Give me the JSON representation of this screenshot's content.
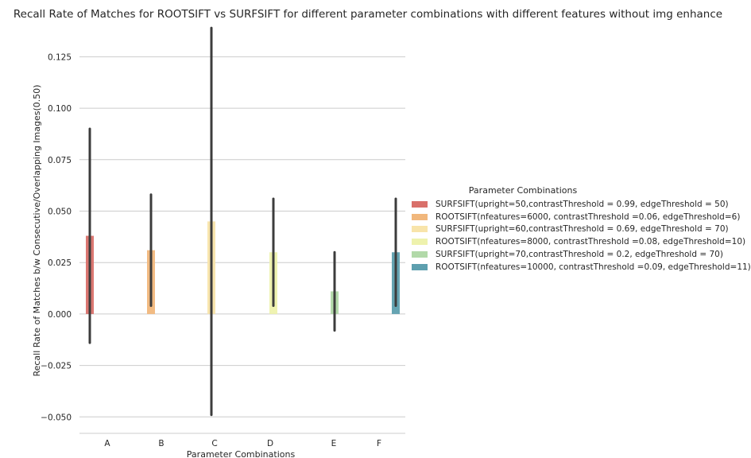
{
  "chart_data": {
    "type": "bar",
    "title": "Recall Rate of Matches for ROOTSIFT vs SURFSIFT for different parameter combinations with different features without img enhance",
    "xlabel": "Parameter Combinations",
    "ylabel": "Recall Rate of Matches b/w Consecutive/Overlapping Images(0.50)",
    "categories": [
      "A",
      "B",
      "C",
      "D",
      "E",
      "F"
    ],
    "ylim": [
      -0.058,
      0.141
    ],
    "yticks": [
      -0.05,
      -0.025,
      0.0,
      0.025,
      0.05,
      0.075,
      0.1,
      0.125
    ],
    "ytick_labels": [
      "−0.050",
      "−0.025",
      "0.000",
      "0.025",
      "0.050",
      "0.075",
      "0.100",
      "0.125"
    ],
    "grid": "horizontal",
    "legend_title": "Parameter Combinations",
    "legend_position": "right",
    "series": [
      {
        "name": "SURFSIFT(upright=50,contrastThreshold = 0.99, edgeThreshold = 50)",
        "color": "#d9706a",
        "category": "A",
        "value": 0.038,
        "ci": [
          -0.014,
          0.09
        ]
      },
      {
        "name": "ROOTSIFT(nfeatures=6000, contrastThreshold =0.06, edgeThreshold=6)",
        "color": "#f1b77c",
        "category": "B",
        "value": 0.031,
        "ci": [
          0.004,
          0.058
        ]
      },
      {
        "name": "SURFSIFT(upright=60,contrastThreshold = 0.69, edgeThreshold = 70)",
        "color": "#f8e4aa",
        "category": "C",
        "value": 0.045,
        "ci": [
          -0.049,
          0.139
        ]
      },
      {
        "name": "ROOTSIFT(nfeatures=8000, contrastThreshold =0.08, edgeThreshold=10)",
        "color": "#eef2ad",
        "category": "D",
        "value": 0.03,
        "ci": [
          0.004,
          0.056
        ]
      },
      {
        "name": "SURFSIFT(upright=70,contrastThreshold = 0.2, edgeThreshold = 70)",
        "color": "#b2d9a9",
        "category": "E",
        "value": 0.011,
        "ci": [
          -0.008,
          0.03
        ]
      },
      {
        "name": "ROOTSIFT(nfeatures=10000, contrastThreshold =0.09, edgeThreshold=11)",
        "color": "#5d9fae",
        "category": "F",
        "value": 0.03,
        "ci": [
          0.004,
          0.056
        ]
      }
    ]
  }
}
